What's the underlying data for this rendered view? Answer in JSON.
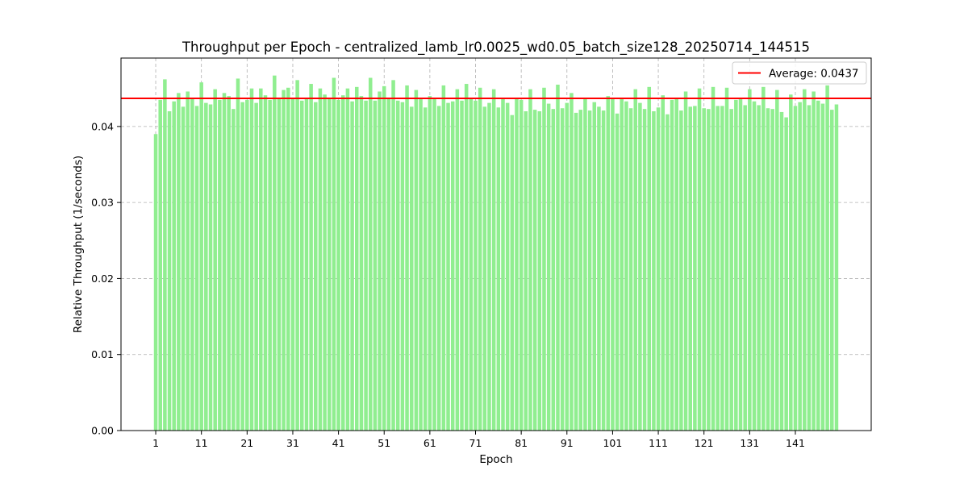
{
  "chart_data": {
    "type": "bar",
    "title": "Throughput per Epoch - centralized_lamb_lr0.0025_wd0.05_batch_size128_20250714_144515",
    "xlabel": "Epoch",
    "ylabel": "Relative Throughput (1/seconds)",
    "xlim": [
      -6.6,
      157.6
    ],
    "ylim": [
      0.0,
      0.049
    ],
    "x_ticks": [
      "1",
      "11",
      "21",
      "31",
      "41",
      "51",
      "61",
      "71",
      "81",
      "91",
      "101",
      "111",
      "121",
      "131",
      "141"
    ],
    "y_ticks": [
      "0.00",
      "0.01",
      "0.02",
      "0.03",
      "0.04"
    ],
    "grid": true,
    "legend": "top-right",
    "bar_color": "#90EE90",
    "average_line": {
      "label": "Average: 0.0437",
      "value": 0.0437,
      "color": "#FF0000"
    },
    "series": [
      {
        "values": [
          0.039,
          0.0435,
          0.0462,
          0.042,
          0.0433,
          0.0444,
          0.0426,
          0.0446,
          0.0437,
          0.0427,
          0.0458,
          0.0431,
          0.0429,
          0.0449,
          0.0435,
          0.0444,
          0.044,
          0.0423,
          0.0463,
          0.0432,
          0.0435,
          0.045,
          0.0431,
          0.045,
          0.0441,
          0.0435,
          0.0467,
          0.0436,
          0.0448,
          0.0451,
          0.0437,
          0.0461,
          0.0434,
          0.0437,
          0.0456,
          0.0432,
          0.045,
          0.0442,
          0.0436,
          0.0464,
          0.0435,
          0.0441,
          0.045,
          0.0433,
          0.0452,
          0.044,
          0.0434,
          0.0464,
          0.0434,
          0.0446,
          0.0453,
          0.0436,
          0.0461,
          0.0434,
          0.0432,
          0.0454,
          0.0426,
          0.0448,
          0.0436,
          0.0425,
          0.044,
          0.0437,
          0.0427,
          0.0454,
          0.0431,
          0.0433,
          0.0449,
          0.0434,
          0.0456,
          0.0438,
          0.0434,
          0.0451,
          0.0426,
          0.0431,
          0.0449,
          0.0425,
          0.0436,
          0.0431,
          0.0415,
          0.0437,
          0.0435,
          0.042,
          0.0449,
          0.0422,
          0.042,
          0.0451,
          0.043,
          0.0423,
          0.0455,
          0.0424,
          0.0431,
          0.0444,
          0.0418,
          0.0422,
          0.0438,
          0.0421,
          0.0432,
          0.0426,
          0.0421,
          0.044,
          0.0438,
          0.0417,
          0.0437,
          0.0433,
          0.0424,
          0.0449,
          0.0431,
          0.0423,
          0.0452,
          0.042,
          0.0425,
          0.0441,
          0.0416,
          0.0435,
          0.0437,
          0.0421,
          0.0446,
          0.0426,
          0.0427,
          0.045,
          0.0424,
          0.0423,
          0.0452,
          0.0427,
          0.0427,
          0.0451,
          0.0423,
          0.0435,
          0.0438,
          0.0428,
          0.0449,
          0.0433,
          0.0428,
          0.0452,
          0.0424,
          0.0423,
          0.0448,
          0.0419,
          0.0412,
          0.0442,
          0.0427,
          0.0432,
          0.0449,
          0.0428,
          0.0446,
          0.0434,
          0.043,
          0.0454,
          0.0422,
          0.0429
        ]
      }
    ]
  }
}
